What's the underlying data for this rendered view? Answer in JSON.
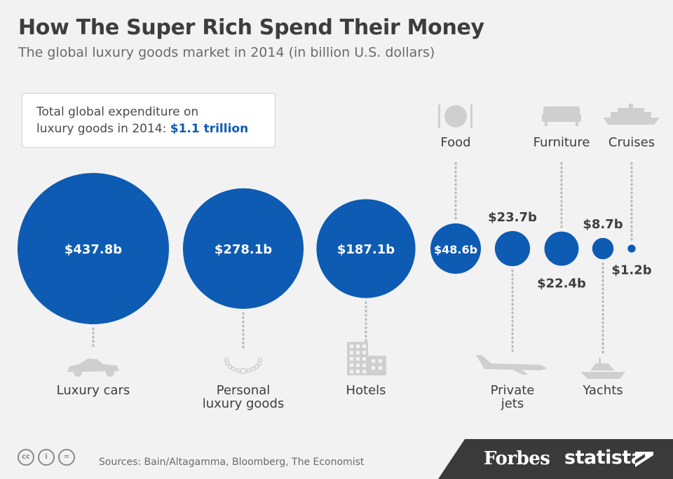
{
  "header": {
    "title": "How The Super Rich Spend Their Money",
    "subtitle": "The global luxury goods market in 2014 (in billion U.S. dollars)"
  },
  "total_box": {
    "line1": "Total global expenditure on",
    "line2_prefix": "luxury goods in 2014: ",
    "value": "$1.1 trillion"
  },
  "colors": {
    "bubble": "#0d5bb3",
    "accent_text": "#0d5bb3",
    "label_text": "#3d3d3d",
    "icon": "#cfcfcf",
    "dotted_line": "#b8b8b8"
  },
  "chart_data": {
    "type": "bubble",
    "unit": "billion U.S. dollars",
    "title": "How The Super Rich Spend Their Money",
    "subtitle": "The global luxury goods market in 2014 (in billion U.S. dollars)",
    "items": [
      {
        "category": "Luxury cars",
        "lines": [
          "Luxury cars"
        ],
        "value": 437.8,
        "label": "$437.8b",
        "icon": "car-icon"
      },
      {
        "category": "Personal luxury goods",
        "lines": [
          "Personal",
          "luxury goods"
        ],
        "value": 278.1,
        "label": "$278.1b",
        "icon": "necklace-icon"
      },
      {
        "category": "Hotels",
        "lines": [
          "Hotels"
        ],
        "value": 187.1,
        "label": "$187.1b",
        "icon": "hotel-icon"
      },
      {
        "category": "Food",
        "lines": [
          "Food"
        ],
        "value": 48.6,
        "label": "$48.6b",
        "icon": "plate-icon"
      },
      {
        "category": "Private jets",
        "lines": [
          "Private",
          "jets"
        ],
        "value": 23.7,
        "label": "$23.7b",
        "icon": "jet-icon"
      },
      {
        "category": "Furniture",
        "lines": [
          "Furniture"
        ],
        "value": 22.4,
        "label": "$22.4b",
        "icon": "sofa-icon"
      },
      {
        "category": "Yachts",
        "lines": [
          "Yachts"
        ],
        "value": 8.7,
        "label": "$8.7b",
        "icon": "yacht-icon"
      },
      {
        "category": "Cruises",
        "lines": [
          "Cruises"
        ],
        "value": 1.2,
        "label": "$1.2b",
        "icon": "cruise-ship-icon"
      }
    ]
  },
  "footer": {
    "sources": "Sources: Bain/Altagamma, Bloomberg, The Economist",
    "cc_icons": [
      "cc-icon",
      "by-icon",
      "nd-icon"
    ],
    "cc_glyphs": [
      "cc",
      "i",
      "="
    ],
    "brand_forbes": "Forbes",
    "brand_statista": "statista"
  }
}
